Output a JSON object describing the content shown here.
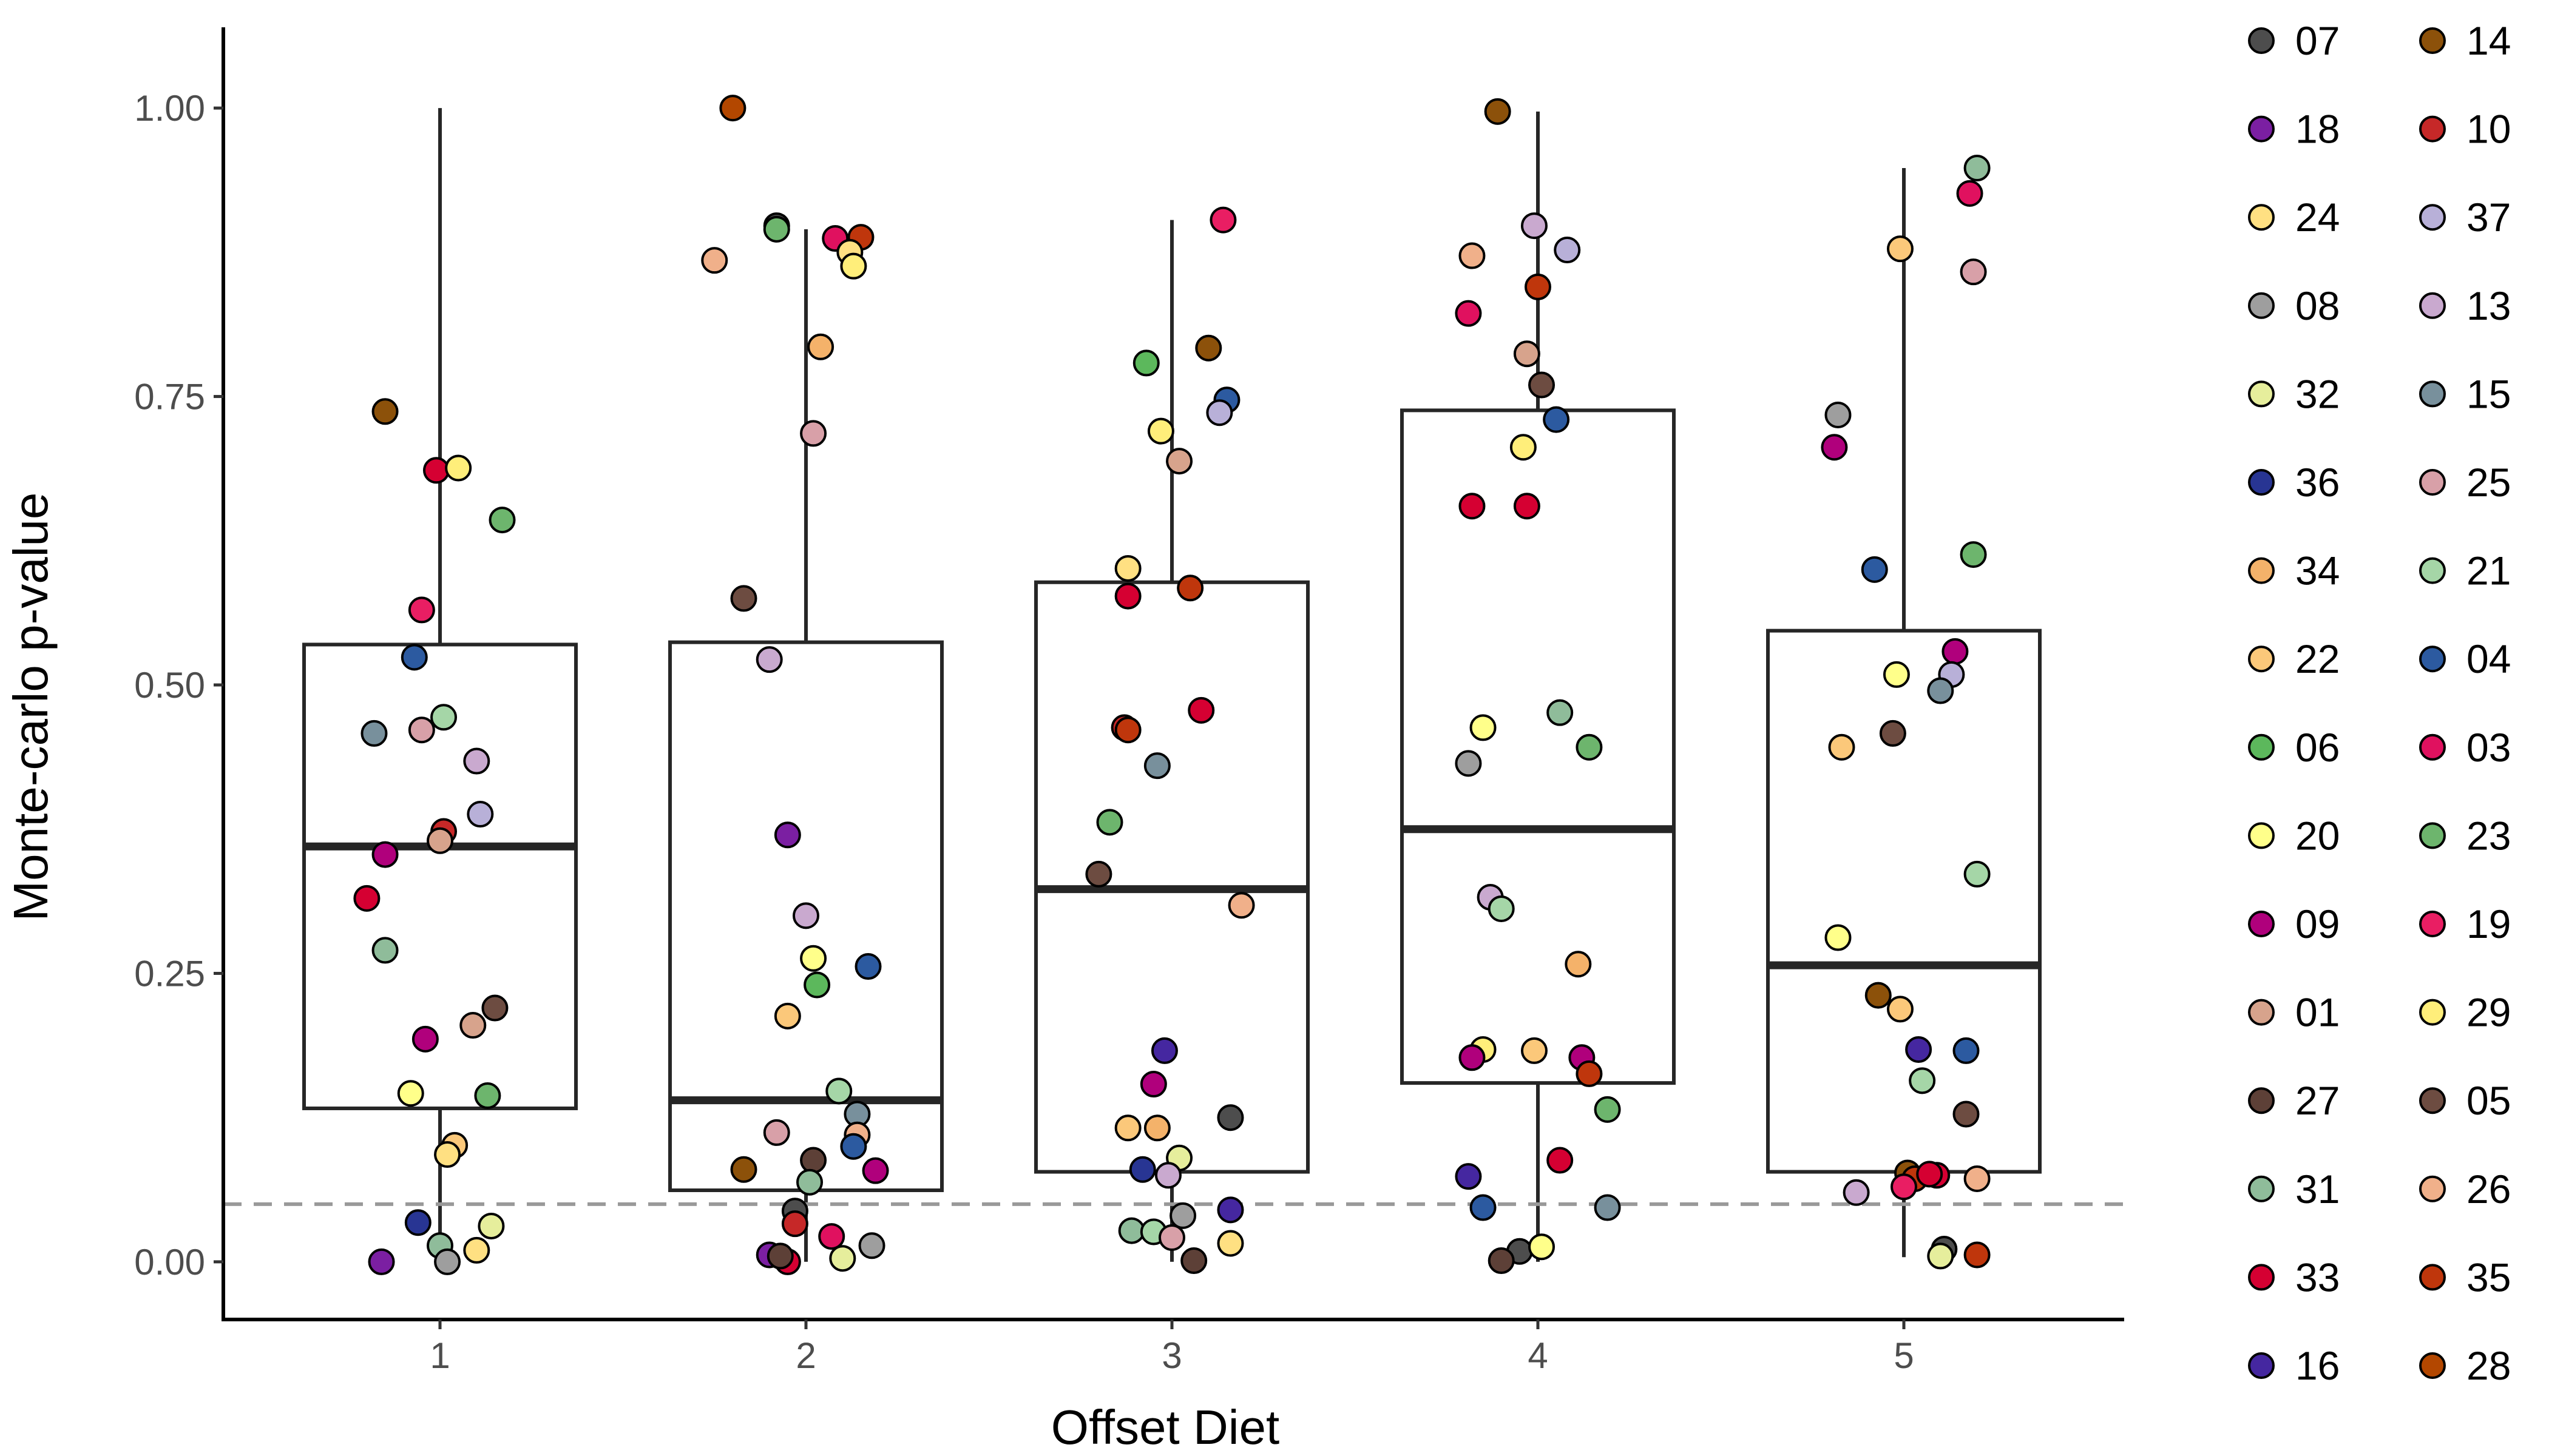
{
  "chart_data": {
    "type": "scatter",
    "overlay": "boxplot with jittered points",
    "xlabel": "Offset Diet",
    "ylabel": "Monte-carlo p-value",
    "categories": [
      "1",
      "2",
      "3",
      "4",
      "5"
    ],
    "ylim": [
      -0.05,
      1.07
    ],
    "yticks": [
      "0.00",
      "0.25",
      "0.50",
      "0.75",
      "1.00"
    ],
    "reference_line": {
      "y": 0.05,
      "style": "dashed",
      "color": "#999999"
    },
    "grid": false,
    "legend_position": "right",
    "boxes": [
      {
        "category": "1",
        "q1": 0.133,
        "median": 0.36,
        "q3": 0.535,
        "whisker_low": 0.0,
        "whisker_high": 1.0
      },
      {
        "category": "2",
        "q1": 0.062,
        "median": 0.14,
        "q3": 0.537,
        "whisker_low": 0.0,
        "whisker_high": 0.895
      },
      {
        "category": "3",
        "q1": 0.078,
        "median": 0.323,
        "q3": 0.589,
        "whisker_low": 0.0,
        "whisker_high": 0.903
      },
      {
        "category": "4",
        "q1": 0.155,
        "median": 0.375,
        "q3": 0.738,
        "whisker_low": 0.0,
        "whisker_high": 0.997
      },
      {
        "category": "5",
        "q1": 0.078,
        "median": 0.257,
        "q3": 0.547,
        "whisker_low": 0.004,
        "whisker_high": 0.948
      }
    ],
    "legend": [
      {
        "label": "07",
        "color": "#4d4d4d"
      },
      {
        "label": "14",
        "color": "#8c510a"
      },
      {
        "label": "18",
        "color": "#7b1fa2"
      },
      {
        "label": "10",
        "color": "#c62828"
      },
      {
        "label": "24",
        "color": "#ffe082"
      },
      {
        "label": "37",
        "color": "#b8b0d8"
      },
      {
        "label": "08",
        "color": "#9e9e9e"
      },
      {
        "label": "13",
        "color": "#c9a9cf"
      },
      {
        "label": "32",
        "color": "#e6ee9c"
      },
      {
        "label": "15",
        "color": "#78909c"
      },
      {
        "label": "36",
        "color": "#283593"
      },
      {
        "label": "25",
        "color": "#d8a0a8"
      },
      {
        "label": "34",
        "color": "#f4b26a"
      },
      {
        "label": "21",
        "color": "#a5d6a7"
      },
      {
        "label": "22",
        "color": "#fbc87a"
      },
      {
        "label": "04",
        "color": "#2c5aa0"
      },
      {
        "label": "06",
        "color": "#5cb85c"
      },
      {
        "label": "03",
        "color": "#e0115f"
      },
      {
        "label": "20",
        "color": "#ffff8a"
      },
      {
        "label": "23",
        "color": "#6db56d"
      },
      {
        "label": "09",
        "color": "#b0007c"
      },
      {
        "label": "19",
        "color": "#e91e63"
      },
      {
        "label": "01",
        "color": "#d7a38c"
      },
      {
        "label": "29",
        "color": "#ffee7a"
      },
      {
        "label": "27",
        "color": "#5d4037"
      },
      {
        "label": "05",
        "color": "#6d4c41"
      },
      {
        "label": "31",
        "color": "#8fbc9a"
      },
      {
        "label": "26",
        "color": "#f0b08a"
      },
      {
        "label": "33",
        "color": "#d50032"
      },
      {
        "label": "35",
        "color": "#bf360c"
      },
      {
        "label": "16",
        "color": "#4527a0"
      },
      {
        "label": "28",
        "color": "#b34700"
      }
    ],
    "series": [
      {
        "category": "1",
        "points": [
          [
            0.8,
            1.0,
            "#b34700"
          ],
          [
            0.75,
            0.868,
            "#f0b08a"
          ],
          [
            1.15,
            0.888,
            "#bf360c"
          ],
          [
            -0.15,
            0.737,
            "#8c510a"
          ],
          [
            -0.01,
            0.686,
            "#d50032"
          ],
          [
            0.05,
            0.688,
            "#ffee7a"
          ],
          [
            0.17,
            0.643,
            "#6db56d"
          ],
          [
            -0.05,
            0.565,
            "#e91e63"
          ],
          [
            -0.07,
            0.524,
            "#2c5aa0"
          ],
          [
            -0.18,
            0.458,
            "#78909c"
          ],
          [
            -0.05,
            0.461,
            "#d8a0a8"
          ],
          [
            0.01,
            0.472,
            "#a5d6a7"
          ],
          [
            0.1,
            0.434,
            "#c9a9cf"
          ],
          [
            0.11,
            0.388,
            "#b8b0d8"
          ],
          [
            0.01,
            0.373,
            "#c62828"
          ],
          [
            0.0,
            0.365,
            "#d7a38c"
          ],
          [
            -0.15,
            0.353,
            "#b0007c"
          ],
          [
            -0.2,
            0.315,
            "#d50032"
          ],
          [
            -0.15,
            0.27,
            "#8fbc9a"
          ],
          [
            0.15,
            0.22,
            "#6d4c41"
          ],
          [
            0.09,
            0.205,
            "#d7a38c"
          ],
          [
            -0.04,
            0.193,
            "#b0007c"
          ],
          [
            -0.08,
            0.146,
            "#ffff8a"
          ],
          [
            0.13,
            0.144,
            "#6db56d"
          ],
          [
            0.04,
            0.101,
            "#fbc87a"
          ],
          [
            0.02,
            0.093,
            "#ffe082"
          ],
          [
            -0.06,
            0.034,
            "#283593"
          ],
          [
            0.0,
            0.014,
            "#8fbc9a"
          ],
          [
            0.14,
            0.031,
            "#e6ee9c"
          ],
          [
            0.1,
            0.01,
            "#ffe082"
          ],
          [
            -0.16,
            0.0,
            "#7b1fa2"
          ],
          [
            0.02,
            0.0,
            "#9e9e9e"
          ]
        ]
      },
      {
        "category": "2",
        "points": [
          [
            -0.08,
            0.898,
            "#4d4d4d"
          ],
          [
            -0.08,
            0.895,
            "#6db56d"
          ],
          [
            0.08,
            0.887,
            "#e0115f"
          ],
          [
            0.12,
            0.875,
            "#ffe082"
          ],
          [
            0.13,
            0.863,
            "#ffee7a"
          ],
          [
            0.04,
            0.793,
            "#f4b26a"
          ],
          [
            0.02,
            0.718,
            "#d8a0a8"
          ],
          [
            -0.17,
            0.575,
            "#6d4c41"
          ],
          [
            -0.1,
            0.522,
            "#c9a9cf"
          ],
          [
            -0.05,
            0.37,
            "#7b1fa2"
          ],
          [
            0.0,
            0.3,
            "#c9a9cf"
          ],
          [
            0.02,
            0.263,
            "#ffff8a"
          ],
          [
            0.17,
            0.256,
            "#2c5aa0"
          ],
          [
            0.03,
            0.24,
            "#5cb85c"
          ],
          [
            -0.05,
            0.213,
            "#fbc87a"
          ],
          [
            0.09,
            0.148,
            "#a5d6a7"
          ],
          [
            0.14,
            0.128,
            "#78909c"
          ],
          [
            -0.08,
            0.112,
            "#d8a0a8"
          ],
          [
            0.14,
            0.11,
            "#f0b08a"
          ],
          [
            0.13,
            0.1,
            "#2c5aa0"
          ],
          [
            0.02,
            0.088,
            "#5d4037"
          ],
          [
            -0.17,
            0.08,
            "#8c510a"
          ],
          [
            0.19,
            0.079,
            "#b0007c"
          ],
          [
            0.01,
            0.069,
            "#8fbc9a"
          ],
          [
            -0.03,
            0.044,
            "#4d4d4d"
          ],
          [
            -0.03,
            0.033,
            "#c62828"
          ],
          [
            0.07,
            0.022,
            "#e0115f"
          ],
          [
            -0.1,
            0.006,
            "#7b1fa2"
          ],
          [
            -0.05,
            0.0,
            "#d50032"
          ],
          [
            0.1,
            0.003,
            "#e6ee9c"
          ],
          [
            0.18,
            0.014,
            "#9e9e9e"
          ],
          [
            -0.07,
            0.005,
            "#5d4037"
          ]
        ]
      },
      {
        "category": "3",
        "points": [
          [
            0.14,
            0.903,
            "#e91e63"
          ],
          [
            0.1,
            0.792,
            "#8c510a"
          ],
          [
            -0.07,
            0.779,
            "#5cb85c"
          ],
          [
            0.15,
            0.747,
            "#2c5aa0"
          ],
          [
            0.13,
            0.736,
            "#b8b0d8"
          ],
          [
            -0.03,
            0.72,
            "#ffee7a"
          ],
          [
            0.02,
            0.694,
            "#d7a38c"
          ],
          [
            -0.12,
            0.601,
            "#ffe082"
          ],
          [
            0.05,
            0.584,
            "#bf360c"
          ],
          [
            -0.12,
            0.577,
            "#d50032"
          ],
          [
            0.08,
            0.478,
            "#d50032"
          ],
          [
            -0.13,
            0.463,
            "#c62828"
          ],
          [
            -0.12,
            0.461,
            "#bf360c"
          ],
          [
            -0.04,
            0.43,
            "#78909c"
          ],
          [
            -0.17,
            0.381,
            "#6db56d"
          ],
          [
            -0.2,
            0.336,
            "#6d4c41"
          ],
          [
            0.19,
            0.309,
            "#f0b08a"
          ],
          [
            -0.02,
            0.183,
            "#4527a0"
          ],
          [
            -0.05,
            0.154,
            "#b0007c"
          ],
          [
            0.16,
            0.125,
            "#4d4d4d"
          ],
          [
            -0.12,
            0.116,
            "#fbc87a"
          ],
          [
            -0.04,
            0.116,
            "#f4b26a"
          ],
          [
            0.02,
            0.09,
            "#e6ee9c"
          ],
          [
            -0.08,
            0.08,
            "#283593"
          ],
          [
            -0.01,
            0.075,
            "#c9a9cf"
          ],
          [
            0.16,
            0.045,
            "#4527a0"
          ],
          [
            0.03,
            0.04,
            "#9e9e9e"
          ],
          [
            -0.11,
            0.027,
            "#8fbc9a"
          ],
          [
            -0.05,
            0.026,
            "#a5d6a7"
          ],
          [
            0.0,
            0.021,
            "#d8a0a8"
          ],
          [
            0.16,
            0.016,
            "#ffe082"
          ],
          [
            0.06,
            0.001,
            "#5d4037"
          ]
        ]
      },
      {
        "category": "4",
        "points": [
          [
            -0.11,
            0.997,
            "#8c510a"
          ],
          [
            -0.18,
            0.872,
            "#f0b08a"
          ],
          [
            -0.01,
            0.898,
            "#c9a9cf"
          ],
          [
            0.08,
            0.877,
            "#b8b0d8"
          ],
          [
            0.0,
            0.845,
            "#bf360c"
          ],
          [
            -0.19,
            0.822,
            "#e0115f"
          ],
          [
            -0.03,
            0.787,
            "#d7a38c"
          ],
          [
            0.01,
            0.76,
            "#6d4c41"
          ],
          [
            0.05,
            0.73,
            "#2c5aa0"
          ],
          [
            -0.04,
            0.706,
            "#ffee7a"
          ],
          [
            -0.18,
            0.655,
            "#d50032"
          ],
          [
            -0.03,
            0.655,
            "#d50032"
          ],
          [
            0.06,
            0.476,
            "#8fbc9a"
          ],
          [
            -0.15,
            0.463,
            "#ffff8a"
          ],
          [
            0.14,
            0.446,
            "#6db56d"
          ],
          [
            -0.19,
            0.432,
            "#9e9e9e"
          ],
          [
            -0.13,
            0.316,
            "#c9a9cf"
          ],
          [
            -0.1,
            0.306,
            "#a5d6a7"
          ],
          [
            0.11,
            0.258,
            "#f4b26a"
          ],
          [
            -0.15,
            0.184,
            "#ffee7a"
          ],
          [
            -0.01,
            0.183,
            "#fbc87a"
          ],
          [
            -0.18,
            0.177,
            "#b0007c"
          ],
          [
            0.12,
            0.177,
            "#b0007c"
          ],
          [
            0.14,
            0.163,
            "#bf360c"
          ],
          [
            0.19,
            0.132,
            "#6db56d"
          ],
          [
            0.06,
            0.088,
            "#d50032"
          ],
          [
            -0.19,
            0.074,
            "#4527a0"
          ],
          [
            -0.15,
            0.047,
            "#2c5aa0"
          ],
          [
            0.19,
            0.047,
            "#78909c"
          ],
          [
            -0.05,
            0.009,
            "#4d4d4d"
          ],
          [
            0.01,
            0.013,
            "#ffff8a"
          ],
          [
            -0.1,
            0.001,
            "#5d4037"
          ]
        ]
      },
      {
        "category": "5",
        "points": [
          [
            0.2,
            0.948,
            "#8fbc9a"
          ],
          [
            0.18,
            0.926,
            "#e0115f"
          ],
          [
            -0.01,
            0.878,
            "#fbc87a"
          ],
          [
            0.19,
            0.858,
            "#d8a0a8"
          ],
          [
            -0.18,
            0.734,
            "#9e9e9e"
          ],
          [
            -0.19,
            0.706,
            "#b0007c"
          ],
          [
            0.19,
            0.613,
            "#6db56d"
          ],
          [
            -0.08,
            0.6,
            "#2c5aa0"
          ],
          [
            0.14,
            0.529,
            "#b0007c"
          ],
          [
            -0.02,
            0.509,
            "#ffff8a"
          ],
          [
            0.13,
            0.509,
            "#b8b0d8"
          ],
          [
            0.1,
            0.495,
            "#78909c"
          ],
          [
            -0.17,
            0.446,
            "#fbc87a"
          ],
          [
            -0.03,
            0.458,
            "#6d4c41"
          ],
          [
            0.2,
            0.336,
            "#a5d6a7"
          ],
          [
            -0.18,
            0.281,
            "#ffff8a"
          ],
          [
            -0.01,
            0.219,
            "#fbc87a"
          ],
          [
            -0.07,
            0.231,
            "#8c510a"
          ],
          [
            0.04,
            0.184,
            "#4527a0"
          ],
          [
            0.17,
            0.183,
            "#2c5aa0"
          ],
          [
            0.05,
            0.157,
            "#a5d6a7"
          ],
          [
            0.17,
            0.128,
            "#6d4c41"
          ],
          [
            0.01,
            0.077,
            "#8c510a"
          ],
          [
            0.09,
            0.075,
            "#d50032"
          ],
          [
            0.03,
            0.072,
            "#bf360c"
          ],
          [
            0.2,
            0.072,
            "#f0b08a"
          ],
          [
            0.0,
            0.065,
            "#e91e63"
          ],
          [
            -0.13,
            0.06,
            "#c9a9cf"
          ],
          [
            0.11,
            0.011,
            "#4d4d4d"
          ],
          [
            0.1,
            0.005,
            "#e6ee9c"
          ],
          [
            0.2,
            0.006,
            "#bf360c"
          ],
          [
            0.07,
            0.076,
            "#d50032"
          ]
        ]
      }
    ]
  }
}
